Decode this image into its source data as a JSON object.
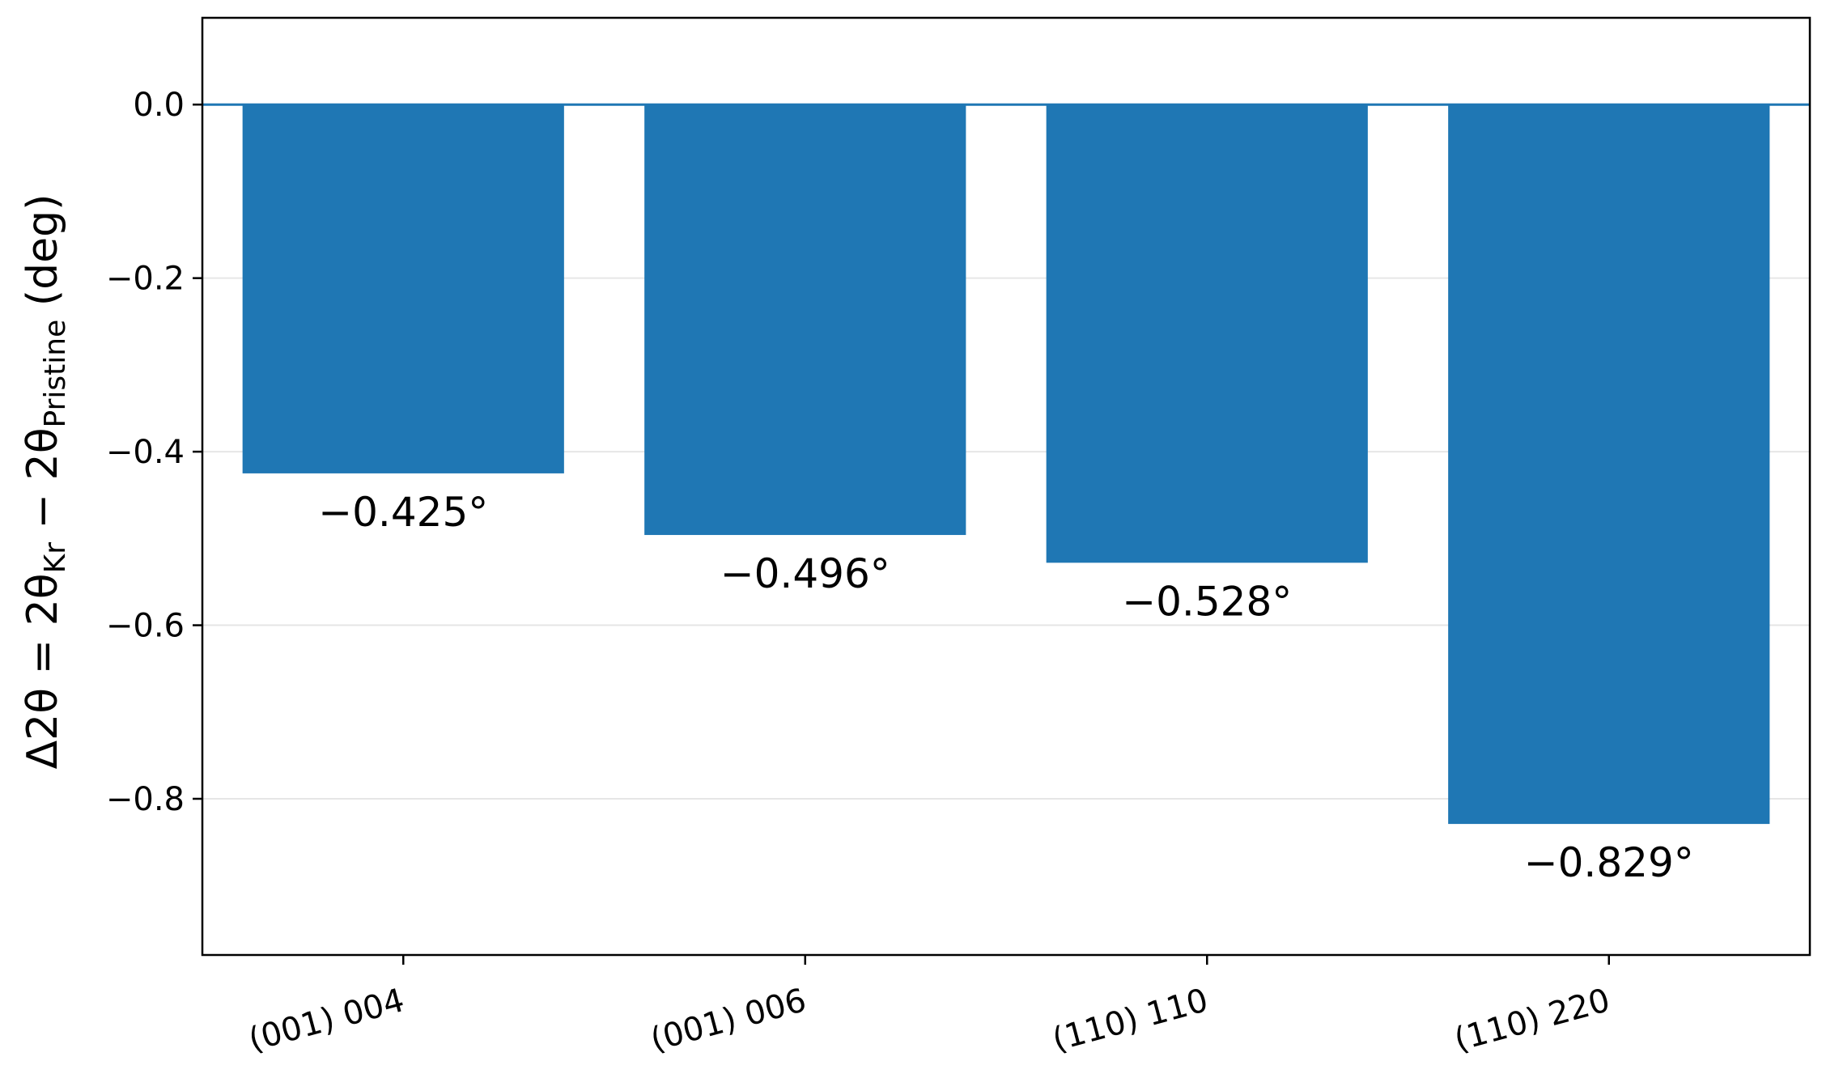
{
  "chart_data": {
    "type": "bar",
    "categories": [
      "(001) 004",
      "(001) 006",
      "(110) 110",
      "(110) 220"
    ],
    "values": [
      -0.425,
      -0.496,
      -0.528,
      -0.829
    ],
    "data_labels": [
      "−0.425°",
      "−0.496°",
      "−0.528°",
      "−0.829°"
    ],
    "title": "",
    "xlabel": "",
    "ylabel": {
      "prefix": "Δ2θ = 2θ",
      "sub1": "Kr",
      "middle": " − 2θ",
      "sub2": "Pristine",
      "suffix": " (deg)"
    },
    "ylim": [
      -0.98,
      0.1
    ],
    "yticks": [
      0.0,
      -0.2,
      -0.4,
      -0.6,
      -0.8
    ],
    "ytick_labels": [
      "0.0",
      "−0.2",
      "−0.4",
      "−0.6",
      "−0.8"
    ],
    "grid": "horizontal",
    "zero_line": true,
    "x_tick_rotation_deg": -15,
    "colors": {
      "bar": "#1f77b4",
      "zero_line": "#1f77b4",
      "grid": "#e6e6e6",
      "axes": "#000000"
    }
  }
}
